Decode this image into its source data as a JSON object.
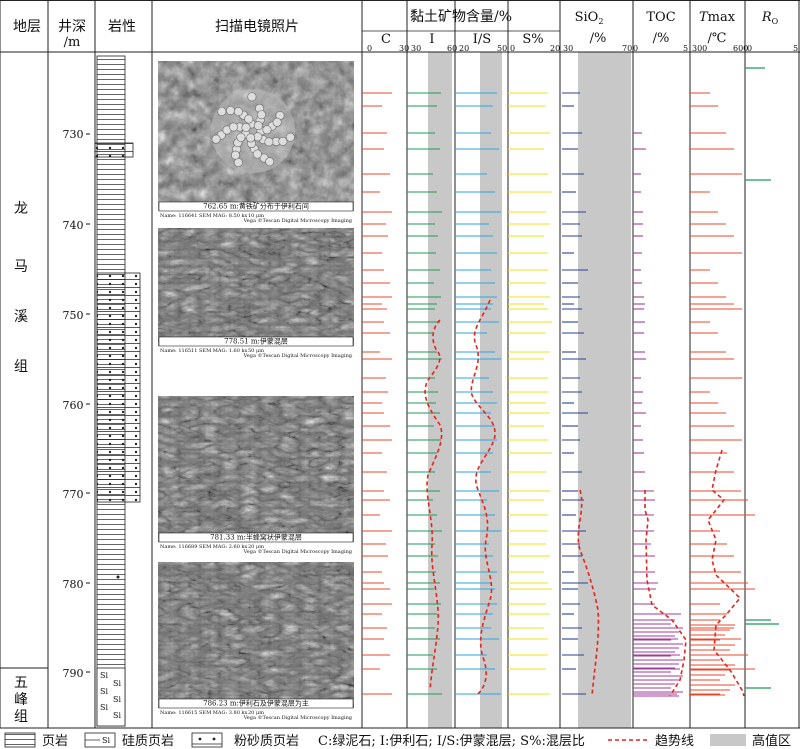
{
  "header": {
    "stratum": "地层",
    "depth": "井深",
    "depth_unit": "/m",
    "lithology": "岩性",
    "sem": "扫描电镜照片",
    "clay": "黏土矿物含量/%",
    "clay_cols": [
      "C",
      "I",
      "I/S",
      "S%"
    ],
    "sio2": "SiO",
    "sio2_sub": "2",
    "sio2_unit": "/%",
    "toc": "TOC",
    "toc_unit": "/%",
    "tmax": "T",
    "tmax_rest": "max",
    "tmax_unit": "/℃",
    "ro": "R",
    "ro_sub": "O"
  },
  "scales": {
    "c": [
      "0",
      "30"
    ],
    "i": [
      "30",
      "60"
    ],
    "is": [
      "20",
      "50"
    ],
    "s": [
      "0",
      "20"
    ],
    "sio2": [
      "30",
      "70"
    ],
    "toc": [
      "0",
      "5"
    ],
    "tmax": [
      "300",
      "600"
    ],
    "ro": [
      "0",
      "5"
    ]
  },
  "strata": [
    {
      "name": "龙马溪组",
      "chars": [
        "龙",
        "马",
        "溪",
        "组"
      ]
    },
    {
      "name": "五峰组",
      "chars": [
        "五",
        "峰",
        "组"
      ]
    }
  ],
  "depth_ticks": [
    "730",
    "740",
    "750",
    "760",
    "770",
    "780",
    "790"
  ],
  "photos": [
    {
      "caption": "762.65 m:黄铁矿分布于伊利石间",
      "meta1": "Name: 116641   SEM MAG: 8.50 kx",
      "meta2": "10 μm",
      "meta3": "Vega ©Tescan  Digital Microscopy Imaging"
    },
    {
      "caption": "778.51 m:伊蒙混层",
      "meta1": "Name: 116511   SEM MAG: 1.60 kx",
      "meta2": "50 μm",
      "meta3": "Vega ©Tescan  Digital Microscopy Imaging"
    },
    {
      "caption": "781.33 m:半蜂窝状伊蒙混层",
      "meta1": "Name: 116689   SEM MAG: 2.60 kx",
      "meta2": "20 μm",
      "meta3": "Vega ©Tescan  Digital Microscopy Imaging"
    },
    {
      "caption": "786.23 m:伊利石及伊蒙混层为主",
      "meta1": "Name: 116615   SEM MAG: 3.80 kx",
      "meta2": "20 μm",
      "meta3": "Vega ©Tescan  Digital Microscopy Imaging"
    }
  ],
  "legend": {
    "shale": "页岩",
    "siliceous": "硅质页岩",
    "silty": "粉砂质页岩",
    "abbrev": "C:绿泥石; I:伊利石; I/S:伊蒙混层; S%:混层比",
    "trend": "趋势线",
    "high": "高值区",
    "si": "Si"
  },
  "colors": {
    "c": "#e8472b",
    "i": "#1e9a5a",
    "is": "#2aa7e0",
    "s": "#f2e21a",
    "sio2": "#2b3f9e",
    "toc": "#a03c9a",
    "tmax": "#e8472b",
    "ro": "#1e9a5a",
    "trend": "#e8231b",
    "highband": "#c8c8c8"
  }
}
